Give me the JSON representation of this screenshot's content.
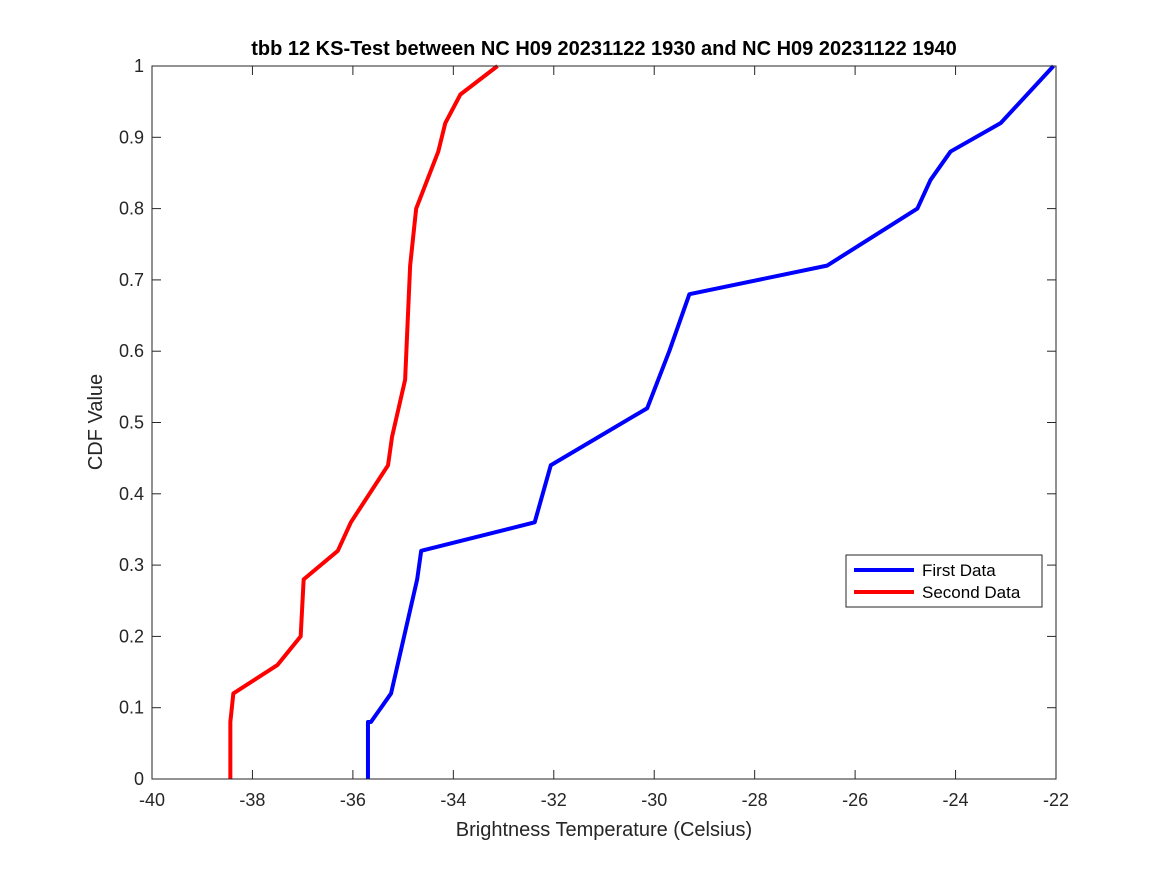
{
  "chart_data": {
    "type": "line",
    "title": "tbb 12 KS-Test between NC H09 20231122 1930 and NC H09 20231122 1940",
    "xlabel": "Brightness Temperature (Celsius)",
    "ylabel": "CDF Value",
    "xlim": [
      -40,
      -22
    ],
    "ylim": [
      0,
      1
    ],
    "xticks": [
      -40,
      -38,
      -36,
      -34,
      -32,
      -30,
      -28,
      -26,
      -24,
      -22
    ],
    "yticks": [
      0,
      0.1,
      0.2,
      0.3,
      0.4,
      0.5,
      0.6,
      0.7,
      0.8,
      0.9,
      1
    ],
    "grid": false,
    "legend_position": "right",
    "series": [
      {
        "name": "First Data",
        "color": "#0000ff",
        "x": [
          -35.7,
          -35.7,
          -35.64,
          -35.24,
          -34.72,
          -34.64,
          -32.38,
          -32.06,
          -30.14,
          -29.7,
          -29.3,
          -26.56,
          -24.76,
          -24.5,
          -24.1,
          -23.1,
          -22.05
        ],
        "y": [
          0,
          0.08,
          0.08,
          0.12,
          0.28,
          0.32,
          0.36,
          0.44,
          0.52,
          0.6,
          0.68,
          0.72,
          0.8,
          0.84,
          0.88,
          0.92,
          1.0
        ]
      },
      {
        "name": "Second Data",
        "color": "#ff0000",
        "x": [
          -38.44,
          -38.44,
          -38.38,
          -37.5,
          -37.04,
          -36.98,
          -36.3,
          -36.04,
          -35.3,
          -35.22,
          -34.96,
          -34.86,
          -34.74,
          -34.3,
          -34.16,
          -33.86,
          -33.12
        ],
        "y": [
          0,
          0.08,
          0.12,
          0.16,
          0.2,
          0.28,
          0.32,
          0.36,
          0.44,
          0.48,
          0.56,
          0.72,
          0.8,
          0.88,
          0.92,
          0.96,
          1.0
        ]
      }
    ]
  }
}
